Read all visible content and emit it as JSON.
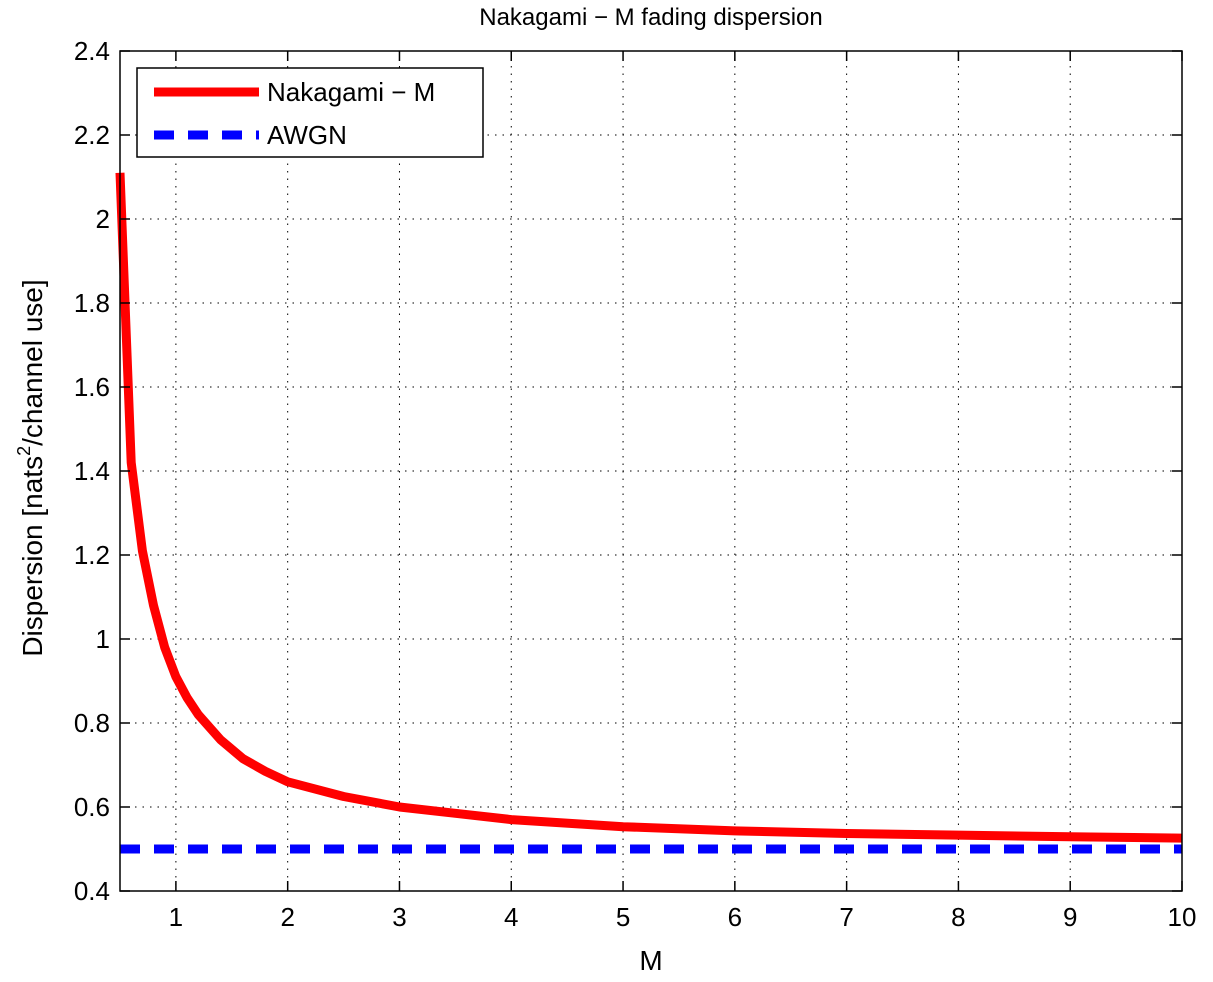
{
  "chart_data": {
    "type": "line",
    "title": "Nakagami − M fading dispersion",
    "xlabel": "M",
    "ylabel_main": "Dispersion [nats",
    "ylabel_sup": "2",
    "ylabel_tail": "/channel use]",
    "xlim": [
      0.5,
      10
    ],
    "ylim": [
      0.4,
      2.4
    ],
    "xticks": [
      1,
      2,
      3,
      4,
      5,
      6,
      7,
      8,
      9,
      10
    ],
    "yticks": [
      0.4,
      0.6,
      0.8,
      1,
      1.2,
      1.4,
      1.6,
      1.8,
      2,
      2.2,
      2.4
    ],
    "grid": true,
    "legend_position": "top-left",
    "series": [
      {
        "name": "Nakagami − M",
        "color": "#ff0000",
        "style": "solid",
        "x": [
          0.5,
          0.6,
          0.7,
          0.8,
          0.9,
          1.0,
          1.1,
          1.2,
          1.4,
          1.6,
          1.8,
          2.0,
          2.5,
          3.0,
          3.5,
          4.0,
          5.0,
          6.0,
          7.0,
          8.0,
          9.0,
          10.0
        ],
        "y": [
          2.11,
          1.42,
          1.21,
          1.08,
          0.98,
          0.91,
          0.86,
          0.82,
          0.76,
          0.715,
          0.685,
          0.66,
          0.625,
          0.6,
          0.585,
          0.57,
          0.553,
          0.543,
          0.537,
          0.533,
          0.529,
          0.526
        ]
      },
      {
        "name": "AWGN",
        "color": "#0000ff",
        "style": "dashed",
        "x": [
          0.5,
          10
        ],
        "y": [
          0.5,
          0.5
        ]
      }
    ]
  }
}
